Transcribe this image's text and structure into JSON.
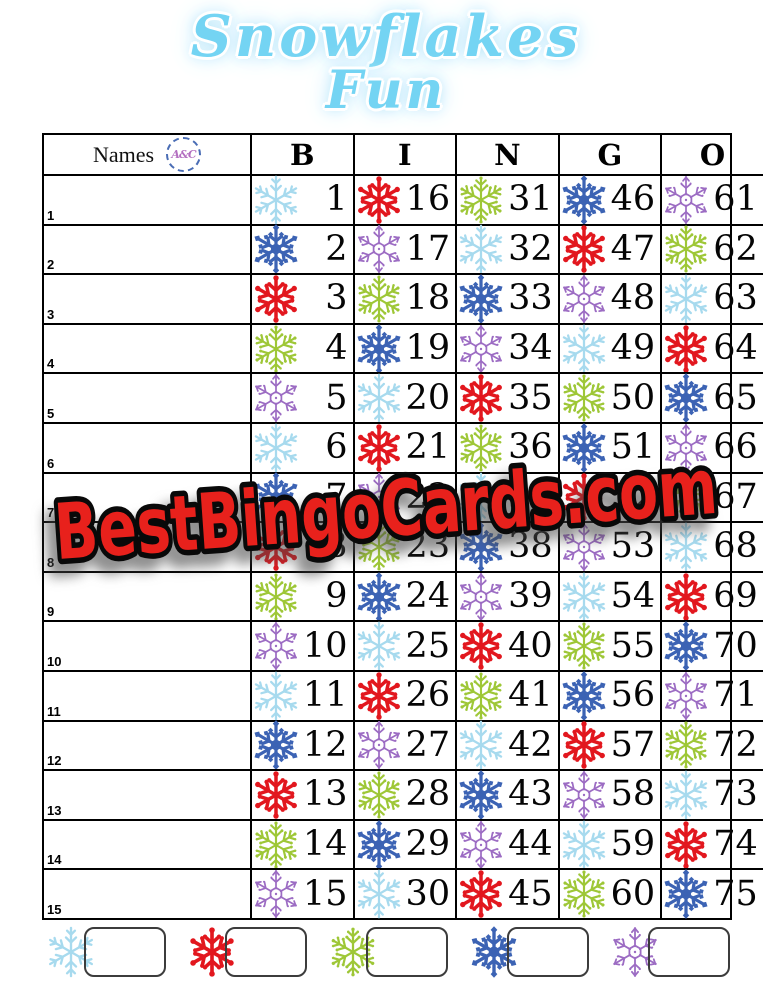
{
  "title": {
    "line1": "Snowflakes",
    "line2": "Fun"
  },
  "header": {
    "names_label": "Names",
    "stamp_text": "A&C",
    "letters": [
      "B",
      "I",
      "N",
      "G",
      "O"
    ]
  },
  "colors": {
    "lightblue": "#a7daee",
    "red": "#e2171e",
    "green": "#9ec737",
    "blue": "#3c63b4",
    "purple": "#9c6cc3"
  },
  "watermark": {
    "text": "BestBingoCards.com",
    "fill": "#e8211c"
  },
  "rows": [
    {
      "label": "1",
      "cells": [
        {
          "color": "lightblue",
          "number": 1
        },
        {
          "color": "red",
          "number": 16
        },
        {
          "color": "green",
          "number": 31
        },
        {
          "color": "blue",
          "number": 46
        },
        {
          "color": "purple",
          "number": 61
        }
      ]
    },
    {
      "label": "2",
      "cells": [
        {
          "color": "blue",
          "number": 2
        },
        {
          "color": "purple",
          "number": 17
        },
        {
          "color": "lightblue",
          "number": 32
        },
        {
          "color": "red",
          "number": 47
        },
        {
          "color": "green",
          "number": 62
        }
      ]
    },
    {
      "label": "3",
      "cells": [
        {
          "color": "red",
          "number": 3
        },
        {
          "color": "green",
          "number": 18
        },
        {
          "color": "blue",
          "number": 33
        },
        {
          "color": "purple",
          "number": 48
        },
        {
          "color": "lightblue",
          "number": 63
        }
      ]
    },
    {
      "label": "4",
      "cells": [
        {
          "color": "green",
          "number": 4
        },
        {
          "color": "blue",
          "number": 19
        },
        {
          "color": "purple",
          "number": 34
        },
        {
          "color": "lightblue",
          "number": 49
        },
        {
          "color": "red",
          "number": 64
        }
      ]
    },
    {
      "label": "5",
      "cells": [
        {
          "color": "purple",
          "number": 5
        },
        {
          "color": "lightblue",
          "number": 20
        },
        {
          "color": "red",
          "number": 35
        },
        {
          "color": "green",
          "number": 50
        },
        {
          "color": "blue",
          "number": 65
        }
      ]
    },
    {
      "label": "6",
      "cells": [
        {
          "color": "lightblue",
          "number": 6
        },
        {
          "color": "red",
          "number": 21
        },
        {
          "color": "green",
          "number": 36
        },
        {
          "color": "blue",
          "number": 51
        },
        {
          "color": "purple",
          "number": 66
        }
      ]
    },
    {
      "label": "7",
      "cells": [
        {
          "color": "blue",
          "number": 7
        },
        {
          "color": "purple",
          "number": 22
        },
        {
          "color": "lightblue",
          "number": 37
        },
        {
          "color": "red",
          "number": 52
        },
        {
          "color": "green",
          "number": 67
        }
      ]
    },
    {
      "label": "8",
      "cells": [
        {
          "color": "red",
          "number": 8
        },
        {
          "color": "green",
          "number": 23
        },
        {
          "color": "blue",
          "number": 38
        },
        {
          "color": "purple",
          "number": 53
        },
        {
          "color": "lightblue",
          "number": 68
        }
      ]
    },
    {
      "label": "9",
      "cells": [
        {
          "color": "green",
          "number": 9
        },
        {
          "color": "blue",
          "number": 24
        },
        {
          "color": "purple",
          "number": 39
        },
        {
          "color": "lightblue",
          "number": 54
        },
        {
          "color": "red",
          "number": 69
        }
      ]
    },
    {
      "label": "10",
      "cells": [
        {
          "color": "purple",
          "number": 10
        },
        {
          "color": "lightblue",
          "number": 25
        },
        {
          "color": "red",
          "number": 40
        },
        {
          "color": "green",
          "number": 55
        },
        {
          "color": "blue",
          "number": 70
        }
      ]
    },
    {
      "label": "11",
      "cells": [
        {
          "color": "lightblue",
          "number": 11
        },
        {
          "color": "red",
          "number": 26
        },
        {
          "color": "green",
          "number": 41
        },
        {
          "color": "blue",
          "number": 56
        },
        {
          "color": "purple",
          "number": 71
        }
      ]
    },
    {
      "label": "12",
      "cells": [
        {
          "color": "blue",
          "number": 12
        },
        {
          "color": "purple",
          "number": 27
        },
        {
          "color": "lightblue",
          "number": 42
        },
        {
          "color": "red",
          "number": 57
        },
        {
          "color": "green",
          "number": 72
        }
      ]
    },
    {
      "label": "13",
      "cells": [
        {
          "color": "red",
          "number": 13
        },
        {
          "color": "green",
          "number": 28
        },
        {
          "color": "blue",
          "number": 43
        },
        {
          "color": "purple",
          "number": 58
        },
        {
          "color": "lightblue",
          "number": 73
        }
      ]
    },
    {
      "label": "14",
      "cells": [
        {
          "color": "green",
          "number": 14
        },
        {
          "color": "blue",
          "number": 29
        },
        {
          "color": "purple",
          "number": 44
        },
        {
          "color": "lightblue",
          "number": 59
        },
        {
          "color": "red",
          "number": 74
        }
      ]
    },
    {
      "label": "15",
      "cells": [
        {
          "color": "purple",
          "number": 15
        },
        {
          "color": "lightblue",
          "number": 30
        },
        {
          "color": "red",
          "number": 45
        },
        {
          "color": "green",
          "number": 60
        },
        {
          "color": "blue",
          "number": 75
        }
      ]
    }
  ],
  "legend": {
    "items": [
      {
        "color": "lightblue"
      },
      {
        "color": "red"
      },
      {
        "color": "green"
      },
      {
        "color": "blue"
      },
      {
        "color": "purple"
      }
    ]
  }
}
